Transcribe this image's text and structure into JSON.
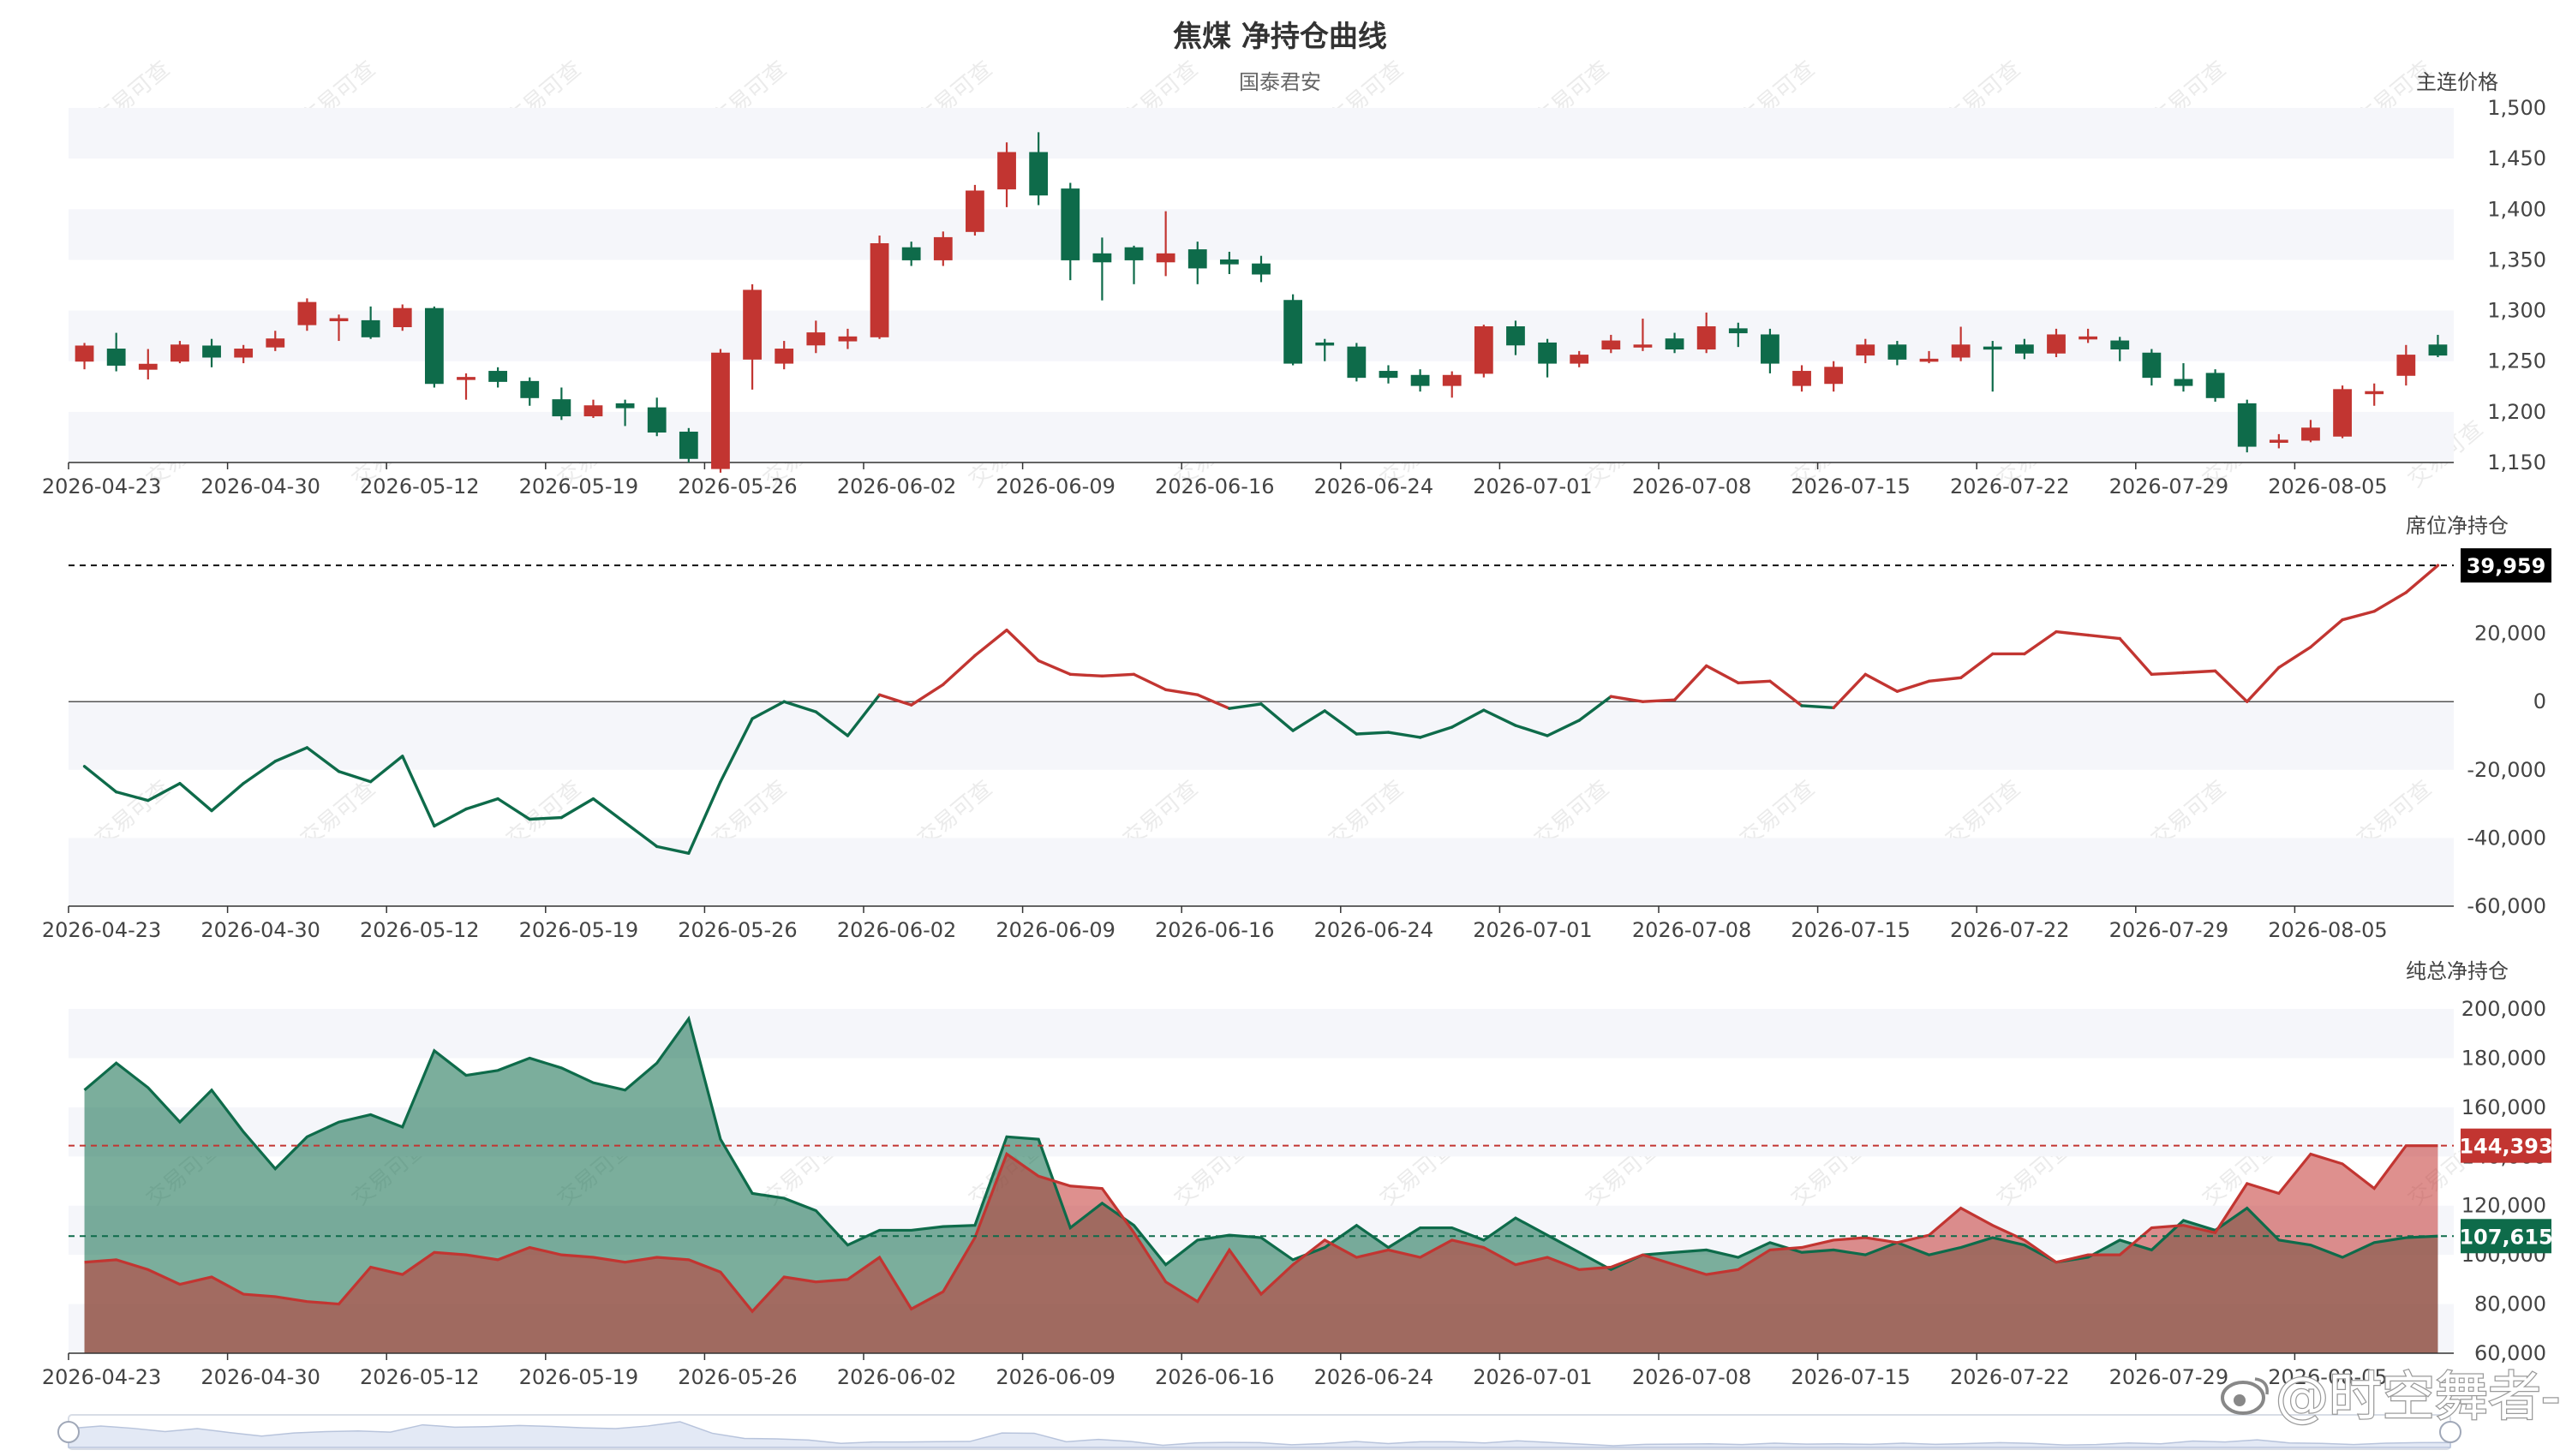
{
  "chart_data": [
    {
      "type": "candlestick",
      "title": "焦煤 净持仓曲线",
      "subtitle": "国泰君安",
      "ylabel": "主连价格",
      "ylim": [
        1150,
        1500
      ],
      "yticks": [
        "1,150",
        "1,200",
        "1,250",
        "1,300",
        "1,350",
        "1,400",
        "1,450",
        "1,500"
      ],
      "x_tick_labels": [
        "2026-04-23",
        "2026-04-30",
        "2026-05-12",
        "2026-05-19",
        "2026-05-26",
        "2026-06-02",
        "2026-06-09",
        "2026-06-16",
        "2026-06-24",
        "2026-07-01",
        "2026-07-08",
        "2026-07-15",
        "2026-07-22",
        "2026-07-29",
        "2026-08-05"
      ],
      "up_color": "#c23531",
      "down_color": "#0e6b4a",
      "ohlc": [
        [
          1250,
          1265,
          1242,
          1268
        ],
        [
          1262,
          1246,
          1240,
          1278
        ],
        [
          1242,
          1247,
          1232,
          1262
        ],
        [
          1250,
          1266,
          1248,
          1270
        ],
        [
          1265,
          1254,
          1244,
          1272
        ],
        [
          1254,
          1262,
          1248,
          1266
        ],
        [
          1264,
          1272,
          1260,
          1280
        ],
        [
          1286,
          1308,
          1280,
          1312
        ],
        [
          1290,
          1292,
          1270,
          1296
        ],
        [
          1290,
          1274,
          1272,
          1304
        ],
        [
          1284,
          1302,
          1280,
          1306
        ],
        [
          1302,
          1228,
          1224,
          1304
        ],
        [
          1232,
          1234,
          1212,
          1238
        ],
        [
          1240,
          1230,
          1224,
          1244
        ],
        [
          1230,
          1214,
          1206,
          1234
        ],
        [
          1212,
          1196,
          1192,
          1224
        ],
        [
          1196,
          1206,
          1194,
          1212
        ],
        [
          1208,
          1204,
          1186,
          1212
        ],
        [
          1204,
          1180,
          1176,
          1214
        ],
        [
          1180,
          1154,
          1150,
          1184
        ],
        [
          1144,
          1258,
          1140,
          1262
        ],
        [
          1252,
          1320,
          1222,
          1326
        ],
        [
          1248,
          1262,
          1242,
          1270
        ],
        [
          1266,
          1278,
          1258,
          1290
        ],
        [
          1270,
          1274,
          1262,
          1282
        ],
        [
          1274,
          1366,
          1272,
          1374
        ],
        [
          1362,
          1350,
          1344,
          1368
        ],
        [
          1350,
          1372,
          1344,
          1378
        ],
        [
          1378,
          1418,
          1374,
          1424
        ],
        [
          1420,
          1456,
          1402,
          1466
        ],
        [
          1456,
          1414,
          1404,
          1476
        ],
        [
          1420,
          1350,
          1330,
          1426
        ],
        [
          1356,
          1348,
          1310,
          1372
        ],
        [
          1362,
          1350,
          1326,
          1364
        ],
        [
          1348,
          1356,
          1334,
          1398
        ],
        [
          1360,
          1342,
          1326,
          1368
        ],
        [
          1350,
          1346,
          1336,
          1358
        ],
        [
          1346,
          1336,
          1328,
          1354
        ],
        [
          1310,
          1248,
          1246,
          1316
        ],
        [
          1268,
          1266,
          1250,
          1272
        ],
        [
          1264,
          1234,
          1230,
          1268
        ],
        [
          1240,
          1234,
          1228,
          1246
        ],
        [
          1236,
          1226,
          1220,
          1242
        ],
        [
          1226,
          1236,
          1214,
          1240
        ],
        [
          1238,
          1284,
          1234,
          1286
        ],
        [
          1284,
          1266,
          1256,
          1290
        ],
        [
          1268,
          1248,
          1234,
          1272
        ],
        [
          1248,
          1256,
          1244,
          1260
        ],
        [
          1262,
          1270,
          1258,
          1276
        ],
        [
          1264,
          1266,
          1260,
          1292
        ],
        [
          1272,
          1262,
          1258,
          1278
        ],
        [
          1262,
          1284,
          1258,
          1298
        ],
        [
          1282,
          1278,
          1264,
          1288
        ],
        [
          1276,
          1248,
          1238,
          1282
        ],
        [
          1226,
          1240,
          1220,
          1246
        ],
        [
          1228,
          1244,
          1220,
          1250
        ],
        [
          1256,
          1266,
          1248,
          1272
        ],
        [
          1266,
          1252,
          1246,
          1270
        ],
        [
          1252,
          1252,
          1248,
          1260
        ],
        [
          1254,
          1266,
          1250,
          1284
        ],
        [
          1264,
          1262,
          1220,
          1270
        ],
        [
          1266,
          1258,
          1252,
          1272
        ],
        [
          1258,
          1276,
          1254,
          1282
        ],
        [
          1274,
          1274,
          1268,
          1282
        ],
        [
          1270,
          1262,
          1250,
          1274
        ],
        [
          1258,
          1234,
          1226,
          1262
        ],
        [
          1232,
          1226,
          1220,
          1248
        ],
        [
          1238,
          1214,
          1210,
          1242
        ],
        [
          1208,
          1166,
          1160,
          1212
        ],
        [
          1170,
          1172,
          1164,
          1178
        ],
        [
          1172,
          1184,
          1170,
          1192
        ],
        [
          1176,
          1222,
          1174,
          1226
        ],
        [
          1218,
          1220,
          1206,
          1228
        ],
        [
          1236,
          1256,
          1226,
          1266
        ],
        [
          1266,
          1256,
          1254,
          1276
        ]
      ]
    },
    {
      "type": "line",
      "ylabel": "席位净持仓",
      "ylim": [
        -60000,
        40000
      ],
      "yticks": [
        "-60,000",
        "-40,000",
        "-20,000",
        "0",
        "20,000"
      ],
      "last_label": "39,959",
      "series": [
        {
          "values": [
            -19000,
            -26500,
            -29000,
            -24000,
            -32000,
            -24000,
            -17500,
            -13500,
            -20500,
            -23500,
            -16000,
            -36500,
            -31500,
            -28500,
            -34500,
            -34000,
            -28500,
            -35500,
            -42500,
            -44500,
            -23500,
            -5000,
            0,
            -3000,
            -10000,
            2000,
            -1000,
            5000,
            13500,
            21000,
            12000,
            8000,
            7500,
            8000,
            3500,
            2000,
            -2000,
            -700,
            -8500,
            -2700,
            -9500,
            -9000,
            -10500,
            -7500,
            -2500,
            -7000,
            -10000,
            -5500,
            1500,
            0,
            500,
            10500,
            5500,
            6000,
            -1200,
            -1800,
            8000,
            3000,
            6000,
            7000,
            14000,
            14000,
            20500,
            19500,
            18500,
            8000,
            8500,
            9000,
            0,
            10000,
            16000,
            24000,
            26500,
            32000,
            39959
          ]
        }
      ]
    },
    {
      "type": "area",
      "ylabel": "纯总净持仓",
      "ylim": [
        60000,
        200000
      ],
      "yticks": [
        "60,000",
        "80,000",
        "100,000",
        "120,000",
        "140,000",
        "160,000",
        "180,000",
        "200,000"
      ],
      "last_labels": [
        "144,393",
        "107,615"
      ],
      "series": [
        {
          "color": "#0e6b4a",
          "values": [
            167000,
            178000,
            168000,
            154000,
            167000,
            150000,
            135000,
            148000,
            154000,
            157000,
            152000,
            183000,
            173000,
            175000,
            180000,
            176000,
            170000,
            167000,
            178000,
            196000,
            147000,
            125000,
            123000,
            118000,
            104000,
            110000,
            110000,
            111500,
            112000,
            148000,
            147000,
            111000,
            121000,
            112000,
            96000,
            106000,
            108000,
            107000,
            98000,
            103000,
            112000,
            103000,
            111000,
            111000,
            106000,
            115000,
            108000,
            101000,
            94000,
            100000,
            101000,
            102000,
            99000,
            105000,
            101000,
            102000,
            100000,
            105000,
            100000,
            103000,
            107000,
            104000,
            97000,
            99000,
            106000,
            102000,
            114000,
            110000,
            119000,
            106000,
            104000,
            99000,
            105000,
            107000,
            107615
          ]
        },
        {
          "color": "#c23531",
          "values": [
            97000,
            98000,
            94000,
            88000,
            91000,
            84000,
            83000,
            81000,
            80000,
            95000,
            92000,
            101000,
            100000,
            98000,
            103000,
            100000,
            99000,
            97000,
            99000,
            98000,
            93000,
            77000,
            91000,
            89000,
            90000,
            99000,
            78000,
            85000,
            107000,
            141000,
            132000,
            128000,
            127000,
            109000,
            89000,
            81000,
            102000,
            84000,
            96000,
            106000,
            99000,
            102000,
            99000,
            106000,
            103000,
            96000,
            99000,
            94000,
            95000,
            100000,
            96000,
            92000,
            94000,
            102000,
            103000,
            106000,
            107000,
            105000,
            108000,
            119000,
            112000,
            106000,
            97000,
            100000,
            100000,
            111000,
            112000,
            109000,
            129000,
            125000,
            141000,
            137000,
            127000,
            144393,
            144393
          ]
        }
      ]
    }
  ],
  "watermark": "交易可查",
  "footer": {
    "credit": "@时空舞者-"
  }
}
